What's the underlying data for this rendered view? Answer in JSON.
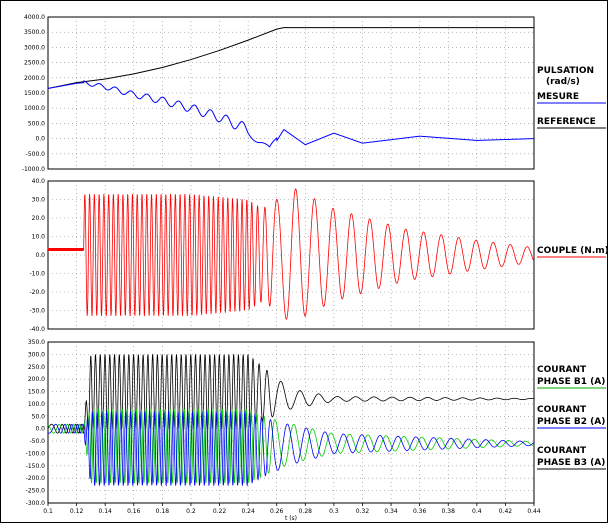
{
  "chart_data": [
    {
      "type": "line",
      "title": "",
      "ylim": [
        -1000,
        4000
      ],
      "y_ticks": [
        "4000.0",
        "3500.0",
        "3000.0",
        "2500.0",
        "2000.0",
        "1500.0",
        "1000.0",
        "500.0",
        "0.0",
        "-500.0",
        "-1000.0"
      ],
      "x_ticks": [],
      "legend": {
        "title_line1": "PULSATION",
        "title_line2": "(rad/s)",
        "entries": [
          "MESURE",
          "REFERENCE"
        ]
      },
      "series": [
        {
          "name": "REFERENCE",
          "color": "#000000",
          "x": [
            0.1,
            0.12,
            0.14,
            0.16,
            0.18,
            0.2,
            0.22,
            0.24,
            0.26,
            0.265,
            0.44
          ],
          "y": [
            1650,
            1840,
            1960,
            2130,
            2340,
            2600,
            2900,
            3240,
            3600,
            3650,
            3650
          ]
        },
        {
          "name": "MESURE",
          "color": "#0000ff",
          "x": [
            0.1,
            0.12,
            0.125,
            0.14,
            0.16,
            0.18,
            0.2,
            0.22,
            0.24,
            0.25,
            0.255,
            0.265,
            0.28,
            0.3,
            0.32,
            0.36,
            0.4,
            0.44
          ],
          "y": [
            1650,
            1820,
            1840,
            1700,
            1450,
            1250,
            1000,
            700,
            300,
            -150,
            -450,
            300,
            -200,
            180,
            -150,
            80,
            -60,
            0
          ],
          "oscillation": {
            "from_x": 0.125,
            "amplitude_start": 60,
            "amplitude_mid": 180,
            "amplitude_end": 60,
            "decay_from_x": 0.26
          }
        }
      ]
    },
    {
      "type": "line",
      "title": "",
      "ylim": [
        -40,
        40
      ],
      "y_ticks": [
        "40.0",
        "30.0",
        "20.0",
        "10.0",
        "0.0",
        "-10.0",
        "-20.0",
        "-30.0",
        "-40.0"
      ],
      "x_ticks": [],
      "legend": {
        "entries": [
          "COUPLE (N.m)"
        ]
      },
      "series": [
        {
          "name": "COUPLE (N.m)",
          "color": "#ff0000",
          "x": [
            0.1,
            0.125,
            0.125,
            0.24,
            0.255,
            0.265,
            0.44
          ],
          "y": [
            3,
            3,
            33,
            30,
            -30,
            37,
            4
          ],
          "oscillation": {
            "from_x": 0.125,
            "envelope_x": [
              0.125,
              0.2,
              0.24,
              0.25,
              0.26,
              0.27,
              0.3,
              0.35,
              0.4,
              0.44
            ],
            "envelope_amp": [
              33,
              33,
              30,
              25,
              30,
              37,
              25,
              14,
              8,
              4
            ]
          }
        }
      ]
    },
    {
      "type": "line",
      "title": "",
      "xlabel": "t (s)",
      "ylim": [
        -300,
        350
      ],
      "xlim": [
        0.1,
        0.44
      ],
      "x_ticks": [
        "0.1",
        "0.12",
        "0.14",
        "0.16",
        "0.18",
        "0.2",
        "0.22",
        "0.24",
        "0.26",
        "0.28",
        "0.3",
        "0.32",
        "0.34",
        "0.36",
        "0.38",
        "0.4",
        "0.42",
        "0.44"
      ],
      "y_ticks": [
        "350.0",
        "300.0",
        "250.0",
        "200.0",
        "150.0",
        "100.0",
        "50.0",
        "0.0",
        "-50.0",
        "-100.0",
        "-150.0",
        "-200.0",
        "-250.0",
        "-300.0"
      ],
      "legend": {
        "entries": [
          "COURANT PHASE B1 (A)",
          "COURANT PHASE B2 (A)",
          "COURANT PHASE B3 (A)"
        ]
      },
      "series": [
        {
          "name": "COURANT PHASE B1 (A)",
          "color": "#000000",
          "legend_line_color": "#00aa00",
          "envelope_x": [
            0.1,
            0.125,
            0.13,
            0.24,
            0.25,
            0.27,
            0.3,
            0.44
          ],
          "offset": [
            0,
            0,
            150,
            150,
            140,
            120,
            120,
            120
          ],
          "envelope_amp": [
            18,
            18,
            150,
            150,
            110,
            40,
            10,
            2
          ]
        },
        {
          "name": "COURANT PHASE B2 (A)",
          "color": "#00cc00",
          "legend_line_color": "#0000ff",
          "envelope_x": [
            0.1,
            0.125,
            0.13,
            0.24,
            0.25,
            0.27,
            0.3,
            0.44
          ],
          "offset": [
            0,
            0,
            -70,
            -70,
            -70,
            -60,
            -60,
            -60
          ],
          "envelope_amp": [
            18,
            18,
            150,
            150,
            120,
            80,
            40,
            8
          ]
        },
        {
          "name": "COURANT PHASE B3 (A)",
          "color": "#0000ff",
          "legend_line_color": "#000000",
          "envelope_x": [
            0.1,
            0.125,
            0.13,
            0.24,
            0.25,
            0.27,
            0.3,
            0.44
          ],
          "offset": [
            0,
            0,
            -80,
            -80,
            -75,
            -65,
            -60,
            -60
          ],
          "envelope_amp": [
            18,
            18,
            150,
            150,
            120,
            80,
            40,
            8
          ]
        }
      ]
    }
  ]
}
